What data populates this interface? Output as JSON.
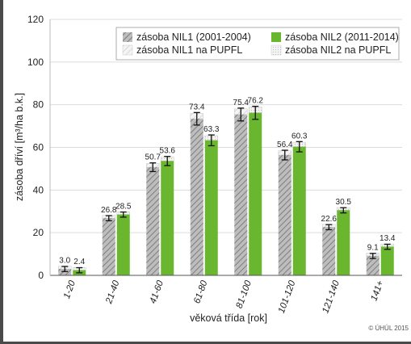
{
  "chart_data": {
    "type": "bar",
    "categories": [
      "1-20",
      "21-40",
      "41-60",
      "61-80",
      "81-100",
      "101-120",
      "121-140",
      "141+"
    ],
    "series": [
      {
        "name": "zásoba NIL1 (2001-2004)",
        "values": [
          3.0,
          26.8,
          50.7,
          73.4,
          75.4,
          56.4,
          22.6,
          9.1
        ],
        "color": "#a9a9a9"
      },
      {
        "name": "zásoba NIL2 (2011-2014)",
        "values": [
          2.4,
          28.5,
          53.6,
          63.3,
          76.2,
          60.3,
          30.5,
          13.4
        ],
        "color": "#6ab72f"
      }
    ],
    "legend_extra": [
      "zásoba NIL1 na PUPFL",
      "zásoba NIL2 na PUPFL"
    ],
    "ylabel": "zásoba dříví [m³/ha b.k.]",
    "xlabel": "věková třída [rok]",
    "ylim": [
      0,
      120
    ],
    "yticks": [
      0,
      20,
      40,
      60,
      80,
      100,
      120
    ],
    "grid": true,
    "legend_position": "top-right",
    "credit": "© ÚHÚL 2015"
  }
}
